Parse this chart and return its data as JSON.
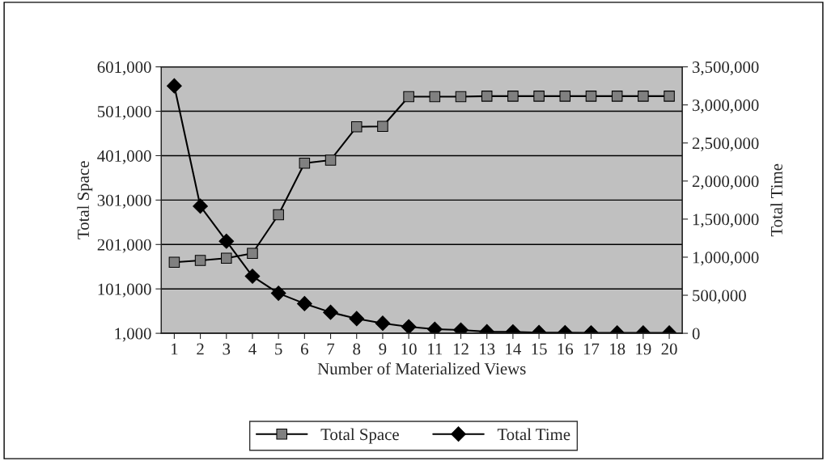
{
  "chart_data": {
    "type": "line",
    "xlabel": "Number of Materialized Views",
    "ylabel": "Total Space",
    "y2label": "Total Time",
    "categories": [
      "1",
      "2",
      "3",
      "4",
      "5",
      "6",
      "7",
      "8",
      "9",
      "10",
      "11",
      "12",
      "13",
      "14",
      "15",
      "16",
      "17",
      "18",
      "19",
      "20"
    ],
    "series": [
      {
        "name": "Total Space",
        "color": "#808080",
        "marker": "square",
        "values": [
          161000,
          165000,
          170000,
          181000,
          268000,
          384000,
          391000,
          466000,
          467000,
          534000,
          534000,
          534000,
          535000,
          535000,
          535000,
          535000,
          535000,
          535000,
          535000,
          535000
        ]
      },
      {
        "name": "Total Time",
        "color": "#000000",
        "marker": "diamond",
        "axis": "y2",
        "values": [
          3250000,
          1670000,
          1210000,
          750000,
          526000,
          390000,
          276000,
          193000,
          132000,
          86000,
          54000,
          43000,
          21000,
          20000,
          10000,
          8000,
          6000,
          5000,
          5000,
          5000
        ]
      }
    ],
    "ylim": [
      1000,
      601000
    ],
    "yticks": [
      {
        "value": 1000,
        "label": "1,000"
      },
      {
        "value": 101000,
        "label": "101,000"
      },
      {
        "value": 201000,
        "label": "201,000"
      },
      {
        "value": 301000,
        "label": "301,000"
      },
      {
        "value": 401000,
        "label": "401,000"
      },
      {
        "value": 501000,
        "label": "501,000"
      },
      {
        "value": 601000,
        "label": "601,000"
      }
    ],
    "y2lim": [
      0,
      3500000
    ],
    "y2ticks": [
      0,
      {
        "value": 500000,
        "label": "500,000"
      },
      {
        "value": 1000000,
        "label": "1,000,000"
      },
      {
        "value": 1500000,
        "label": "1,500,000"
      },
      {
        "value": 2000000,
        "label": "2,000,000"
      },
      {
        "value": 2500000,
        "label": "2,500,000"
      },
      {
        "value": 3000000,
        "label": "3,000,000"
      },
      {
        "value": 3500000,
        "label": "3,500,000"
      }
    ],
    "grid": "y",
    "legend": "bottom",
    "line_style": "solid"
  }
}
